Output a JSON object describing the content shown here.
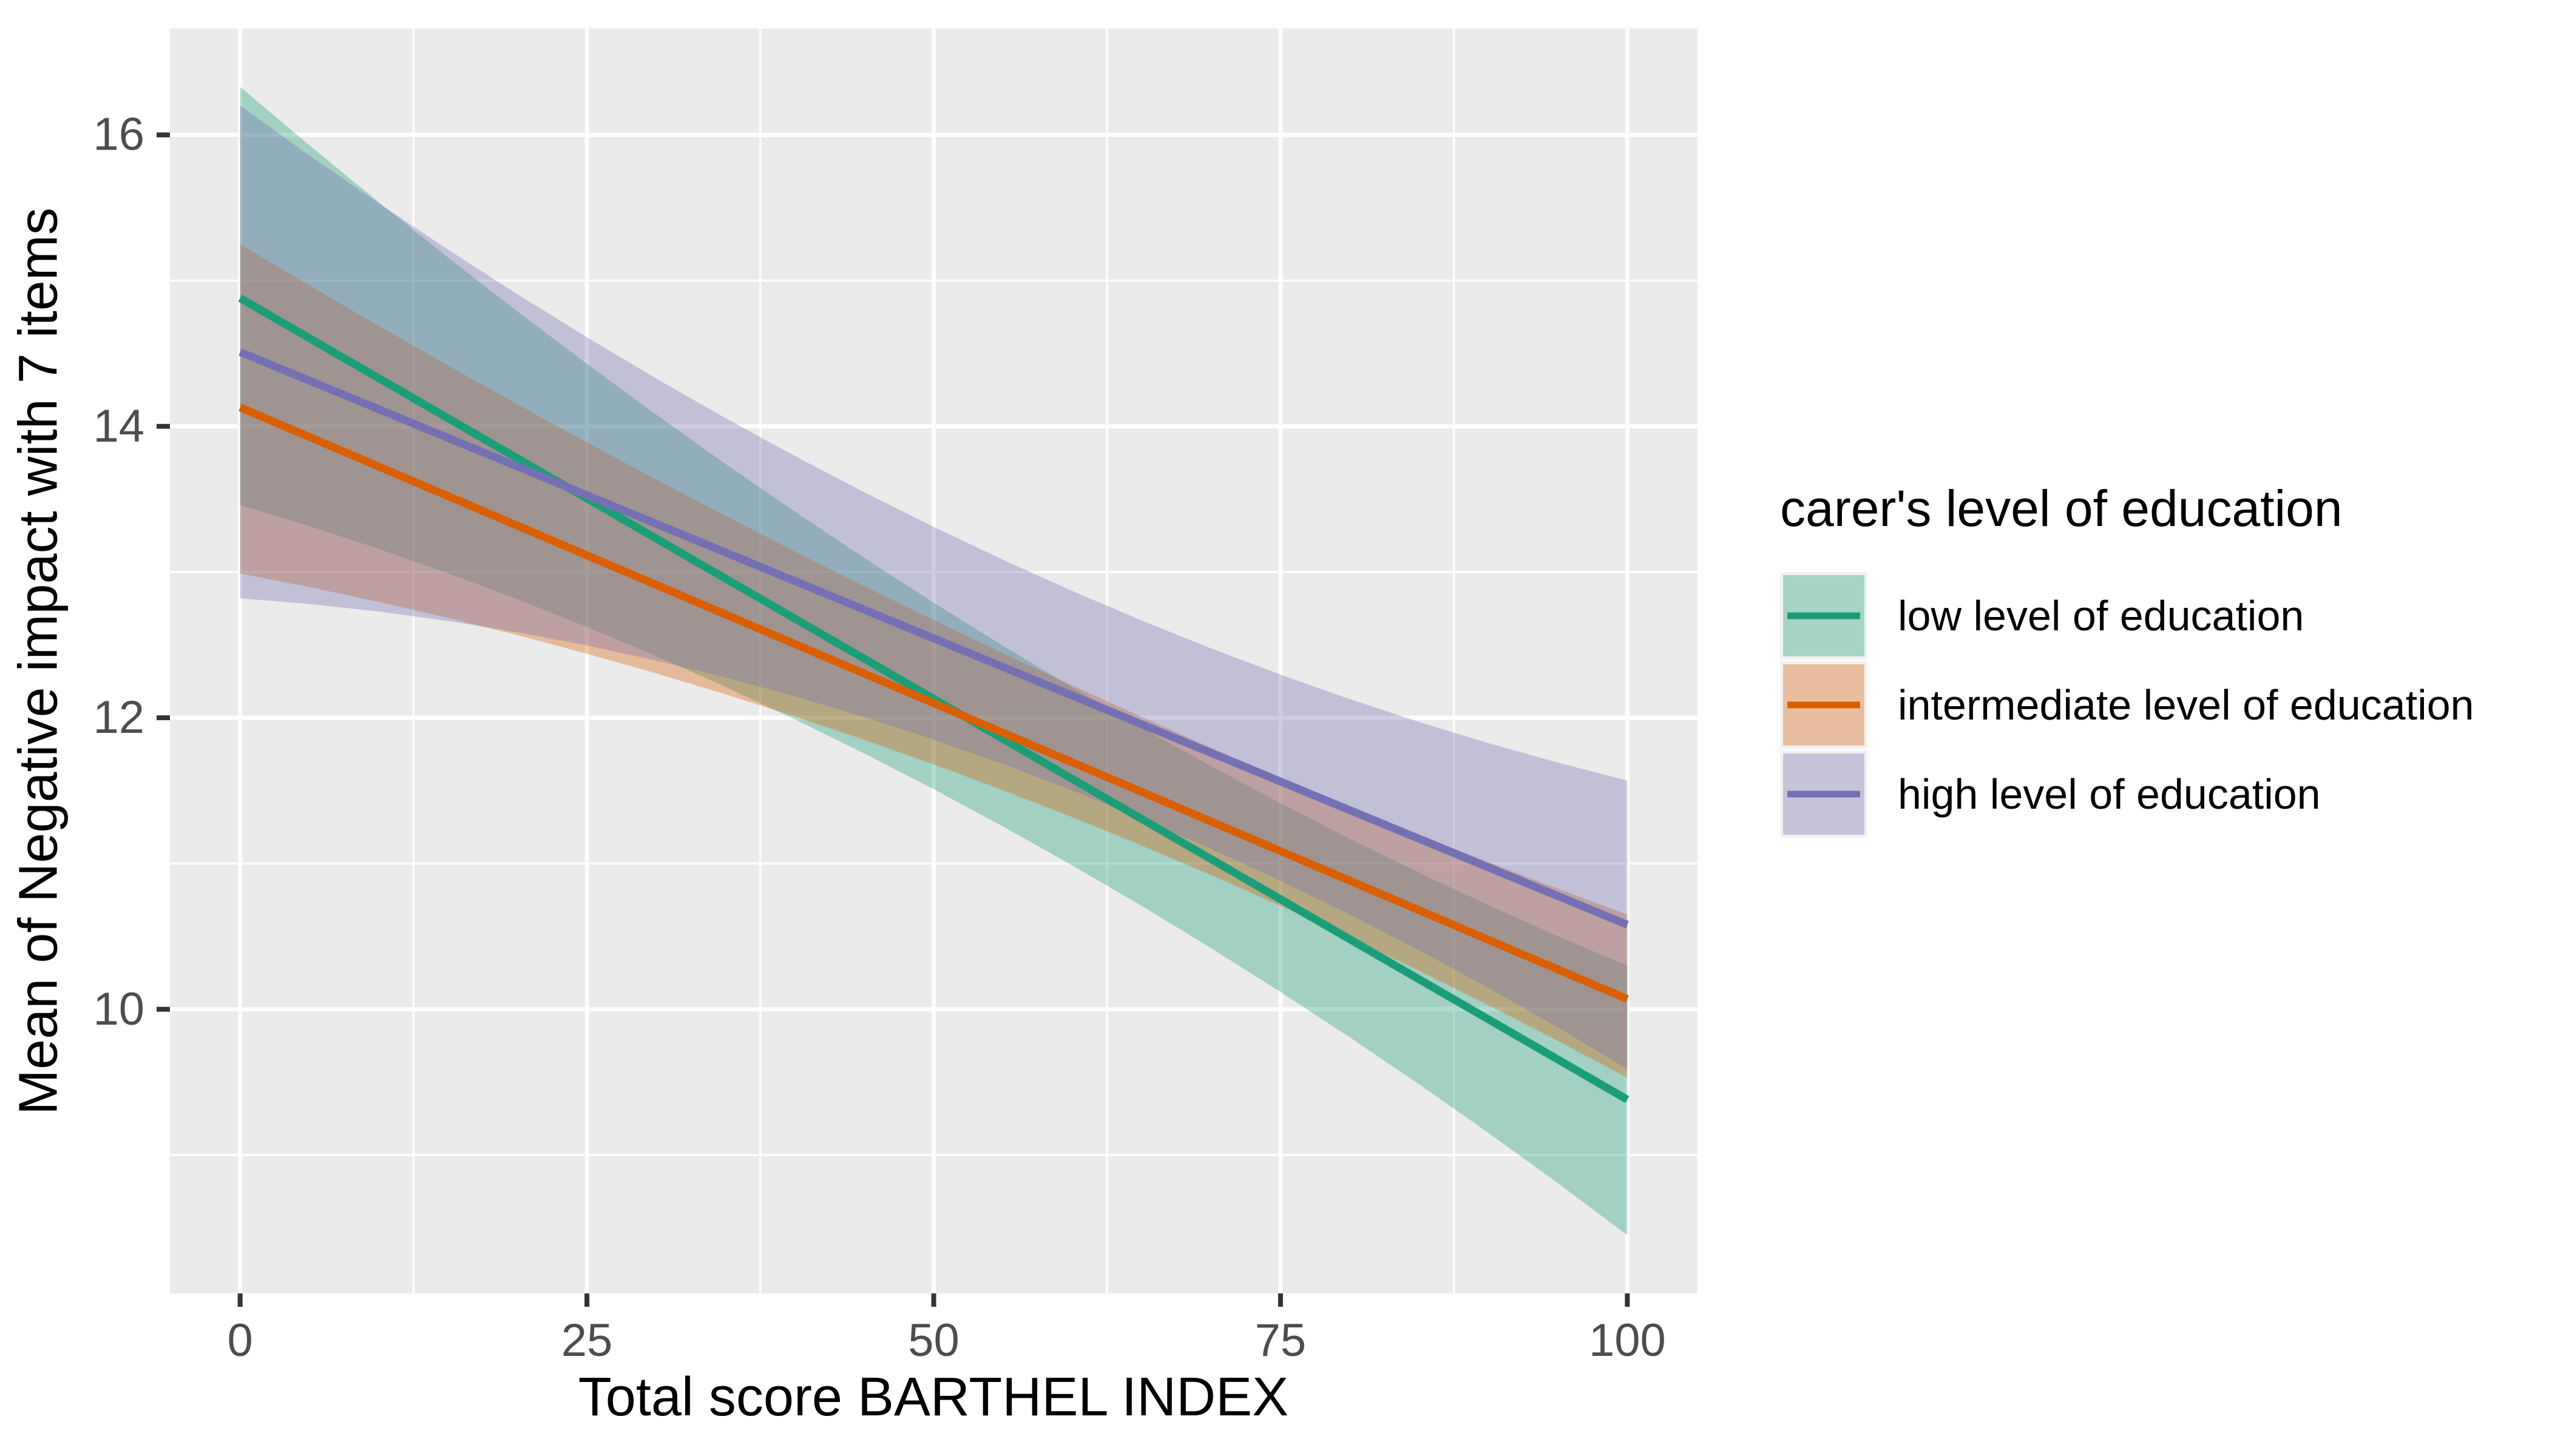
{
  "chart_data": {
    "type": "line",
    "title": "",
    "xlabel": "Total score BARTHEL INDEX",
    "ylabel": "Mean of Negative impact with 7 items",
    "xlim": [
      -5.06,
      105.06
    ],
    "ylim": [
      8.05,
      16.73
    ],
    "x_ticks": [
      0,
      25,
      50,
      75,
      100
    ],
    "y_ticks": [
      16,
      14,
      12,
      10
    ],
    "x_minor": [
      12.5,
      37.5,
      62.5,
      87.5
    ],
    "y_minor": [
      9,
      11,
      13,
      15
    ],
    "grid": "on",
    "legend_position": "right",
    "legend_title": "carer's level of education",
    "panel_fill": "#EBEBEB",
    "grid_color": "#FFFFFF",
    "tick_color": "#333333",
    "tick_label_color": "#4D4D4D",
    "fill_alpha": 0.35,
    "series": [
      {
        "name": "low level of education",
        "color": "#1B9E77",
        "line": {
          "x": [
            0,
            100
          ],
          "y": [
            14.88,
            9.38
          ]
        },
        "ci_upper": {
          "x": [
            0,
            50,
            100
          ],
          "y": [
            16.33,
            12.79,
            10.3
          ]
        },
        "ci_lower": {
          "x": [
            0,
            50,
            100
          ],
          "y": [
            13.46,
            11.51,
            8.45
          ]
        }
      },
      {
        "name": "intermediate level of education",
        "color": "#D95F02",
        "line": {
          "x": [
            0,
            100
          ],
          "y": [
            14.13,
            10.07
          ]
        },
        "ci_upper": {
          "x": [
            0,
            50,
            100
          ],
          "y": [
            15.25,
            12.67,
            10.65
          ]
        },
        "ci_lower": {
          "x": [
            0,
            50,
            100
          ],
          "y": [
            12.99,
            11.68,
            9.53
          ]
        }
      },
      {
        "name": "high level of education",
        "color": "#7570B3",
        "line": {
          "x": [
            0,
            100
          ],
          "y": [
            14.51,
            10.58
          ]
        },
        "ci_upper": {
          "x": [
            0,
            50,
            100
          ],
          "y": [
            16.2,
            13.31,
            11.57
          ]
        },
        "ci_lower": {
          "x": [
            0,
            50,
            100
          ],
          "y": [
            12.82,
            11.85,
            9.59
          ]
        }
      }
    ]
  }
}
